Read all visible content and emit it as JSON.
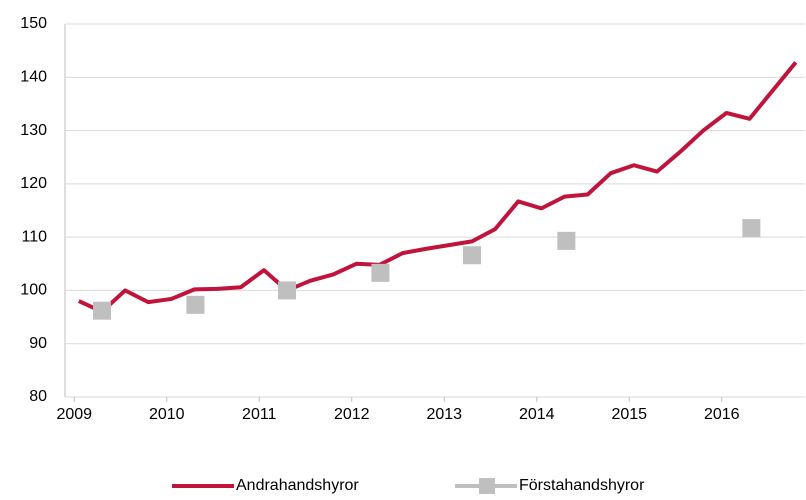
{
  "chart_data": {
    "type": "line",
    "xlim": [
      2008.9,
      2016.9
    ],
    "xticks": [
      2009,
      2010,
      2011,
      2012,
      2013,
      2014,
      2015,
      2016
    ],
    "ylim": [
      80,
      150
    ],
    "yticks": [
      80,
      90,
      100,
      110,
      120,
      130,
      140,
      150
    ],
    "grid": true,
    "legend": "bottom",
    "series": [
      {
        "name": "Andrahandshyror",
        "color": "#c0143c",
        "style": "line",
        "x": [
          2009.05,
          2009.3,
          2009.55,
          2009.8,
          2010.05,
          2010.3,
          2010.55,
          2010.8,
          2011.05,
          2011.3,
          2011.55,
          2011.8,
          2012.05,
          2012.3,
          2012.55,
          2012.8,
          2013.05,
          2013.3,
          2013.55,
          2013.8,
          2014.05,
          2014.3,
          2014.55,
          2014.8,
          2015.05,
          2015.3,
          2015.55,
          2015.8,
          2016.05,
          2016.3,
          2016.55,
          2016.8
        ],
        "values": [
          98,
          96,
          100,
          97.8,
          98.4,
          100.2,
          100.3,
          100.6,
          103.8,
          100,
          101.8,
          103,
          105,
          104.8,
          107,
          107.8,
          108.5,
          109.2,
          111.5,
          116.7,
          115.4,
          117.6,
          118,
          122,
          123.5,
          122.3,
          126,
          130,
          133.3,
          132.2,
          137.5,
          142.8
        ]
      },
      {
        "name": "Förstahandshyror",
        "color": "#bfbfbf",
        "style": "marker",
        "x": [
          2009.3,
          2010.31,
          2011.3,
          2012.31,
          2013.3,
          2014.32,
          2016.32
        ],
        "values": [
          96.2,
          97.3,
          100,
          103.3,
          106.6,
          109.3,
          111.7
        ]
      }
    ]
  }
}
